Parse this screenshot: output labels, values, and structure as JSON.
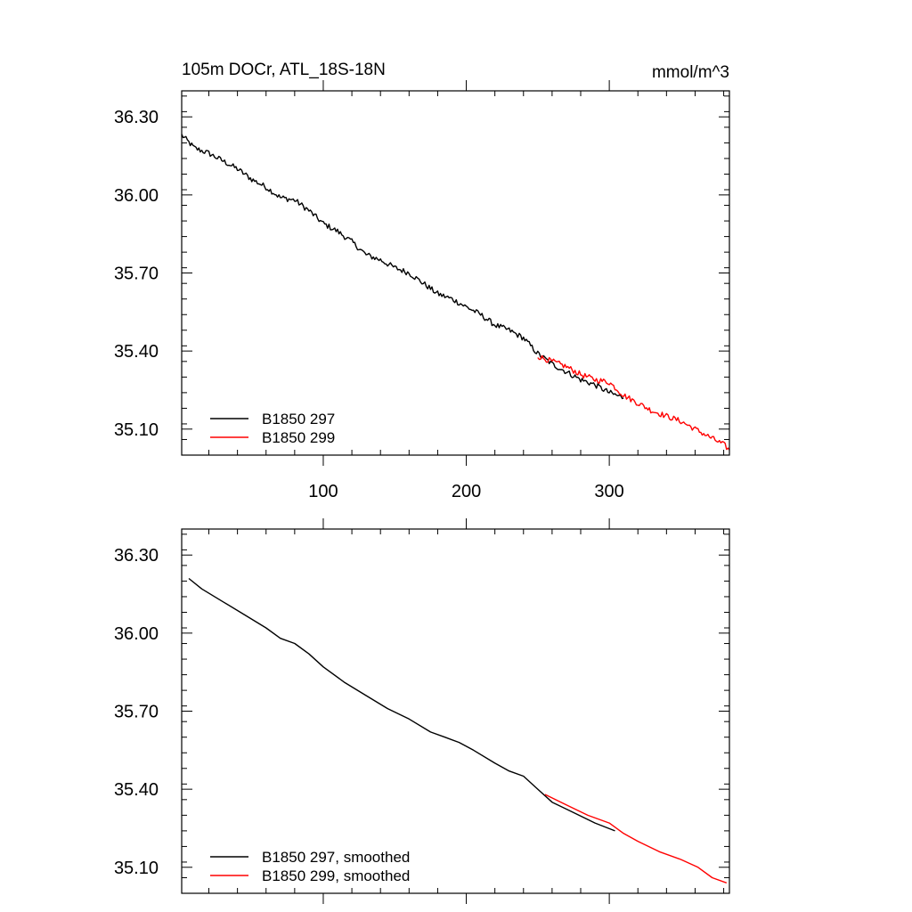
{
  "chart_data": [
    {
      "type": "line",
      "title_left": "105m DOCr, ATL_18S-18N",
      "title_right": "mmol/m^3",
      "xlim": [
        1,
        384
      ],
      "ylim": [
        35.0,
        36.4
      ],
      "xticks": [
        100,
        200,
        300
      ],
      "yticks": [
        35.1,
        35.4,
        35.7,
        36.0,
        36.3
      ],
      "ytick_labels": [
        "35.10",
        "35.40",
        "35.70",
        "36.00",
        "36.30"
      ],
      "xtick_labels": [
        "100",
        "200",
        "300"
      ],
      "grid": false,
      "legend_position": "bottom-left",
      "series": [
        {
          "name": "B1850 297",
          "color": "#000000",
          "noisy": true,
          "x": [
            1,
            10,
            20,
            30,
            40,
            50,
            60,
            70,
            80,
            90,
            100,
            110,
            120,
            130,
            140,
            150,
            160,
            170,
            180,
            190,
            200,
            210,
            220,
            230,
            240,
            250,
            260,
            270,
            280,
            290,
            300,
            310
          ],
          "y": [
            36.23,
            36.18,
            36.16,
            36.13,
            36.1,
            36.06,
            36.03,
            35.99,
            35.98,
            35.94,
            35.89,
            35.86,
            35.82,
            35.77,
            35.75,
            35.72,
            35.7,
            35.66,
            35.62,
            35.6,
            35.57,
            35.54,
            35.5,
            35.48,
            35.45,
            35.39,
            35.35,
            35.32,
            35.29,
            35.27,
            35.24,
            35.22
          ]
        },
        {
          "name": "B1850 299",
          "color": "#ff0000",
          "noisy": true,
          "x": [
            250,
            260,
            270,
            280,
            290,
            300,
            310,
            320,
            330,
            340,
            350,
            360,
            370,
            380,
            384
          ],
          "y": [
            35.38,
            35.36,
            35.34,
            35.31,
            35.29,
            35.28,
            35.23,
            35.2,
            35.17,
            35.15,
            35.13,
            35.1,
            35.07,
            35.04,
            35.02
          ]
        }
      ]
    },
    {
      "type": "line",
      "xlim": [
        1,
        384
      ],
      "ylim": [
        35.0,
        36.4
      ],
      "xticks": [
        100,
        200,
        300
      ],
      "yticks": [
        35.1,
        35.4,
        35.7,
        36.0,
        36.3
      ],
      "ytick_labels": [
        "35.10",
        "35.40",
        "35.70",
        "36.00",
        "36.30"
      ],
      "grid": false,
      "legend_position": "bottom-left",
      "series": [
        {
          "name": "B1850 297, smoothed",
          "color": "#000000",
          "noisy": false,
          "x": [
            6,
            15,
            30,
            45,
            60,
            70,
            80,
            90,
            100,
            115,
            130,
            145,
            160,
            175,
            185,
            195,
            205,
            220,
            230,
            240,
            250,
            260,
            275,
            290,
            304
          ],
          "y": [
            36.21,
            36.17,
            36.12,
            36.07,
            36.02,
            35.98,
            35.96,
            35.92,
            35.87,
            35.81,
            35.76,
            35.71,
            35.67,
            35.62,
            35.6,
            35.58,
            35.55,
            35.5,
            35.47,
            35.45,
            35.4,
            35.35,
            35.31,
            35.27,
            35.24
          ]
        },
        {
          "name": "B1850 299, smoothed",
          "color": "#ff0000",
          "noisy": false,
          "x": [
            255,
            270,
            285,
            300,
            310,
            320,
            335,
            350,
            362,
            372,
            382
          ],
          "y": [
            35.38,
            35.34,
            35.3,
            35.27,
            35.23,
            35.2,
            35.16,
            35.13,
            35.1,
            35.06,
            35.04
          ]
        }
      ]
    }
  ]
}
